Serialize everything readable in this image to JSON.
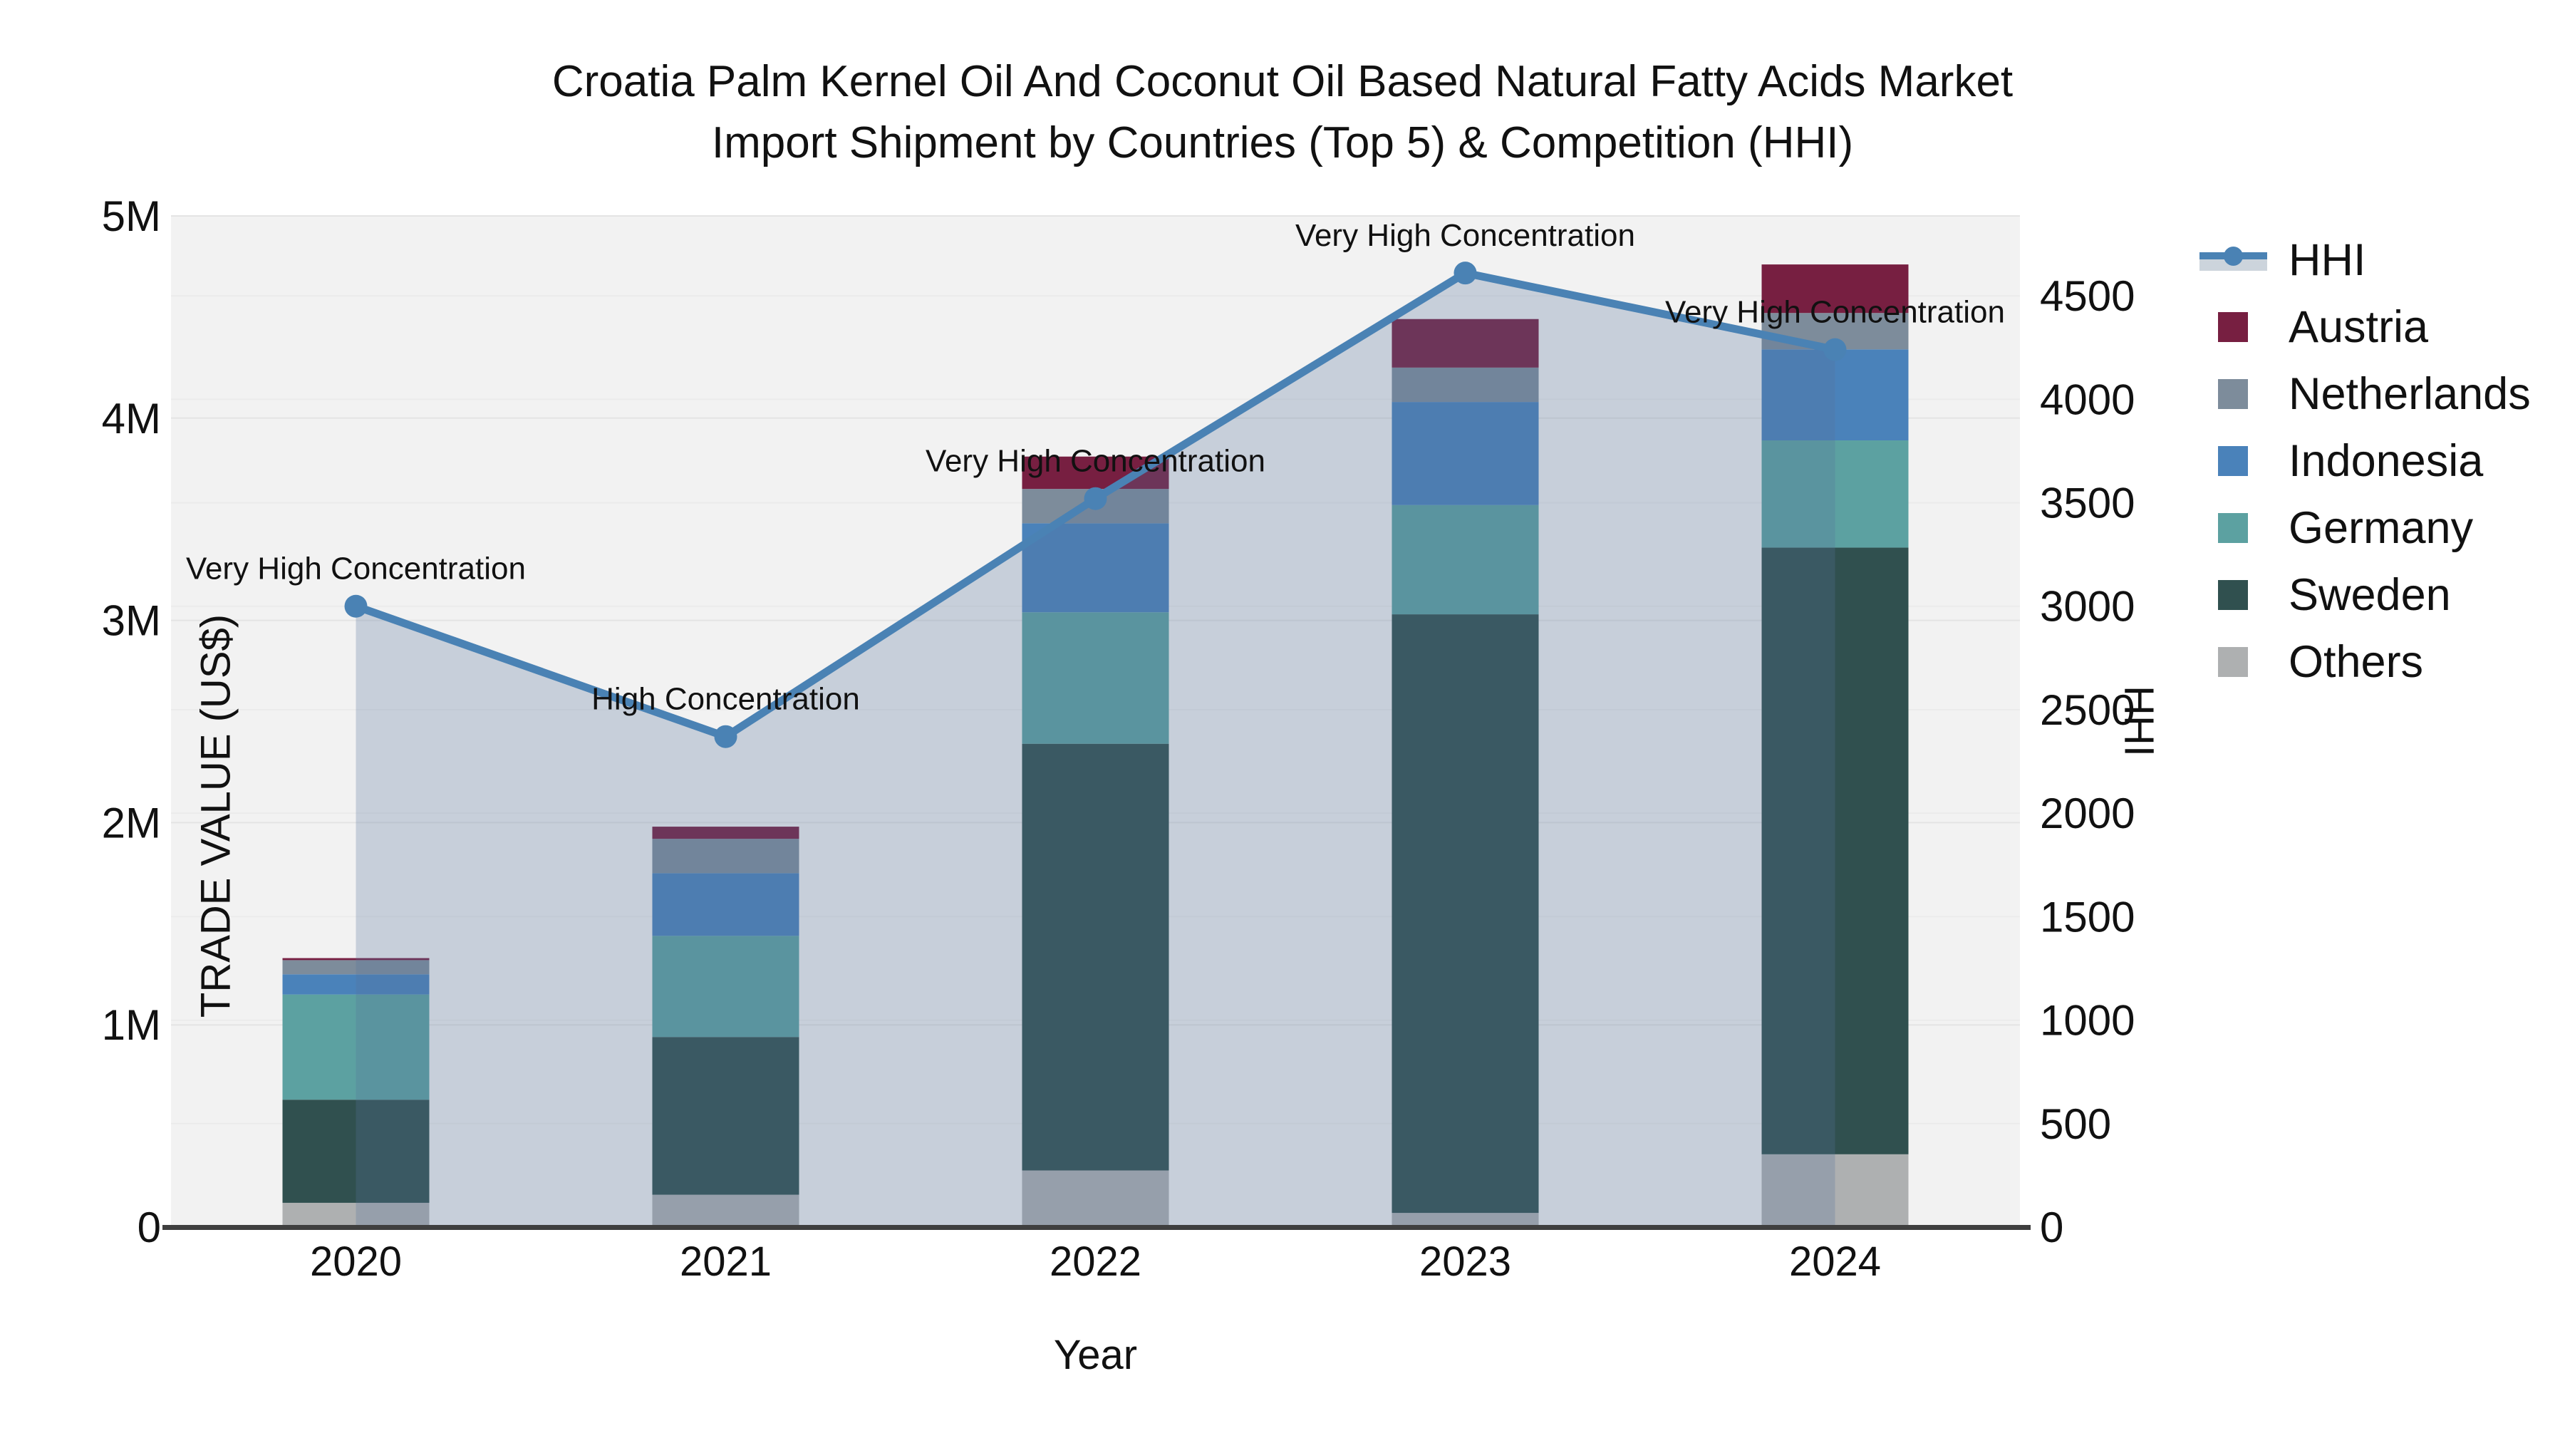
{
  "title": {
    "line1": "Croatia Palm Kernel Oil And Coconut Oil Based Natural Fatty Acids Market",
    "line2": "Import Shipment by Countries (Top 5) & Competition (HHI)"
  },
  "axes": {
    "left": {
      "title": "TRADE VALUE (US$)",
      "max": 5000000,
      "ticks": [
        {
          "label": "0",
          "value": 0
        },
        {
          "label": "1M",
          "value": 1000000
        },
        {
          "label": "2M",
          "value": 2000000
        },
        {
          "label": "3M",
          "value": 3000000
        },
        {
          "label": "4M",
          "value": 4000000
        },
        {
          "label": "5M",
          "value": 5000000
        }
      ]
    },
    "right": {
      "title": "HHI",
      "max": 4886,
      "ticks": [
        0,
        500,
        1000,
        1500,
        2000,
        2500,
        3000,
        3500,
        4000,
        4500
      ]
    },
    "x": {
      "title": "Year"
    }
  },
  "chart_data": {
    "type": "combo: stacked-bar (left axis) + line with area (right axis)",
    "categories": [
      "2020",
      "2021",
      "2022",
      "2023",
      "2024"
    ],
    "series": [
      {
        "name": "Others",
        "color": "#aeb0b1",
        "values": [
          120000,
          160000,
          280000,
          70000,
          360000
        ]
      },
      {
        "name": "Sweden",
        "color": "#30504f",
        "values": [
          510000,
          780000,
          2110000,
          2960000,
          3000000
        ]
      },
      {
        "name": "Germany",
        "color": "#5ca1a1",
        "values": [
          520000,
          500000,
          650000,
          540000,
          530000
        ]
      },
      {
        "name": "Indonesia",
        "color": "#4a82ba",
        "values": [
          100000,
          310000,
          440000,
          510000,
          450000
        ]
      },
      {
        "name": "Netherlands",
        "color": "#7d8c9b",
        "values": [
          70000,
          170000,
          170000,
          170000,
          180000
        ]
      },
      {
        "name": "Austria",
        "color": "#771f41",
        "values": [
          10000,
          60000,
          160000,
          240000,
          240000
        ]
      }
    ],
    "line": {
      "name": "HHI",
      "color": "#4a82b4",
      "area_color": "rgba(85,115,155,0.27)",
      "values": [
        3000,
        2370,
        3520,
        4610,
        4240
      ]
    },
    "annotations": [
      "Very High Concentration",
      "High Concentration",
      "Very High Concentration",
      "Very High Concentration",
      "Very High Concentration"
    ],
    "legend_order": [
      "HHI",
      "Austria",
      "Netherlands",
      "Indonesia",
      "Germany",
      "Sweden",
      "Others"
    ],
    "plot_background": "#f2f2f2",
    "axis_line_color": "#3f3f3f",
    "gridline_color": "#e4e4e4"
  }
}
